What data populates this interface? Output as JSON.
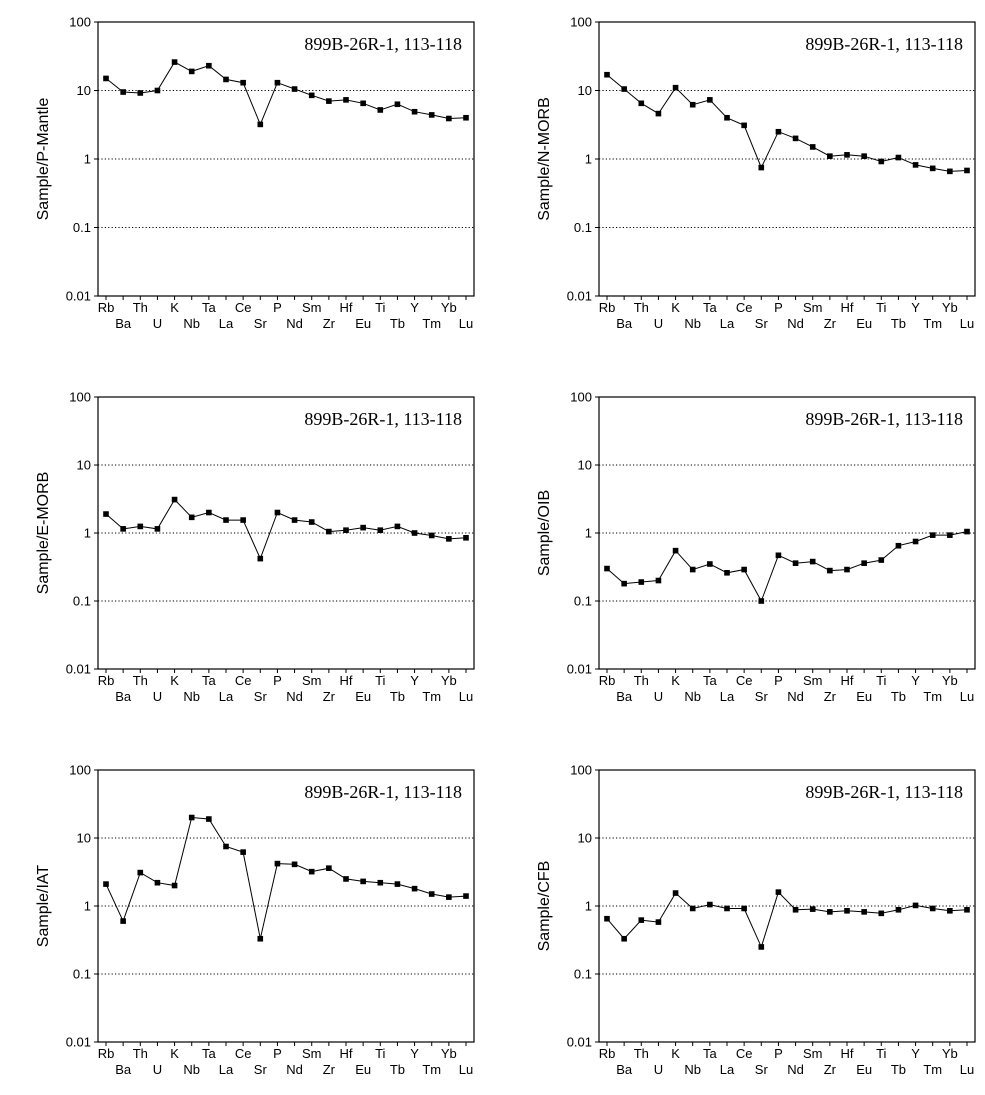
{
  "chart_data": [
    {
      "type": "line",
      "title": "899B-26R-1, 113-118",
      "xlabel": "",
      "ylabel": "Sample/P-Mantle",
      "yscale": "log",
      "ylim": [
        0.01,
        100
      ],
      "yticks": [
        "100",
        "10",
        "1",
        "0.1",
        "0.01"
      ],
      "grid": "dotted horizontal at decades",
      "categories": [
        "Rb",
        "Ba",
        "Th",
        "U",
        "K",
        "Nb",
        "Ta",
        "La",
        "Ce",
        "Sr",
        "P",
        "Nd",
        "Sm",
        "Zr",
        "Hf",
        "Eu",
        "Ti",
        "Tb",
        "Y",
        "Tm",
        "Yb",
        "Lu"
      ],
      "values": [
        15,
        9.5,
        9.2,
        10,
        26,
        19,
        23,
        14.5,
        13,
        3.2,
        13,
        10.5,
        8.5,
        7,
        7.3,
        6.5,
        5.2,
        6.3,
        4.9,
        4.4,
        3.9,
        4.0
      ]
    },
    {
      "type": "line",
      "title": "899B-26R-1, 113-118",
      "xlabel": "",
      "ylabel": "Sample/N-MORB",
      "yscale": "log",
      "ylim": [
        0.01,
        100
      ],
      "yticks": [
        "100",
        "10",
        "1",
        "0.1",
        "0.01"
      ],
      "grid": "dotted horizontal at decades",
      "categories": [
        "Rb",
        "Ba",
        "Th",
        "U",
        "K",
        "Nb",
        "Ta",
        "La",
        "Ce",
        "Sr",
        "P",
        "Nd",
        "Sm",
        "Zr",
        "Hf",
        "Eu",
        "Ti",
        "Tb",
        "Y",
        "Tm",
        "Yb",
        "Lu"
      ],
      "values": [
        17,
        10.5,
        6.5,
        4.6,
        11,
        6.2,
        7.3,
        4.0,
        3.1,
        0.75,
        2.5,
        2.0,
        1.5,
        1.1,
        1.15,
        1.1,
        0.92,
        1.05,
        0.82,
        0.73,
        0.66,
        0.68
      ]
    },
    {
      "type": "line",
      "title": "899B-26R-1, 113-118",
      "xlabel": "",
      "ylabel": "Sample/E-MORB",
      "yscale": "log",
      "ylim": [
        0.01,
        100
      ],
      "yticks": [
        "100",
        "10",
        "1",
        "0.1",
        "0.01"
      ],
      "grid": "dotted horizontal at decades",
      "categories": [
        "Rb",
        "Ba",
        "Th",
        "U",
        "K",
        "Nb",
        "Ta",
        "La",
        "Ce",
        "Sr",
        "P",
        "Nd",
        "Sm",
        "Zr",
        "Hf",
        "Eu",
        "Ti",
        "Tb",
        "Y",
        "Tm",
        "Yb",
        "Lu"
      ],
      "values": [
        1.9,
        1.15,
        1.25,
        1.15,
        3.1,
        1.7,
        2.0,
        1.55,
        1.55,
        0.42,
        2.0,
        1.55,
        1.45,
        1.05,
        1.1,
        1.2,
        1.1,
        1.25,
        1.0,
        0.92,
        0.82,
        0.85
      ]
    },
    {
      "type": "line",
      "title": "899B-26R-1, 113-118",
      "xlabel": "",
      "ylabel": "Sample/OIB",
      "yscale": "log",
      "ylim": [
        0.01,
        100
      ],
      "yticks": [
        "100",
        "10",
        "1",
        "0.1",
        "0.01"
      ],
      "grid": "dotted horizontal at decades",
      "categories": [
        "Rb",
        "Ba",
        "Th",
        "U",
        "K",
        "Nb",
        "Ta",
        "La",
        "Ce",
        "Sr",
        "P",
        "Nd",
        "Sm",
        "Zr",
        "Hf",
        "Eu",
        "Ti",
        "Tb",
        "Y",
        "Tm",
        "Yb",
        "Lu"
      ],
      "values": [
        0.3,
        0.18,
        0.19,
        0.2,
        0.55,
        0.29,
        0.35,
        0.26,
        0.29,
        0.1,
        0.47,
        0.36,
        0.38,
        0.28,
        0.29,
        0.36,
        0.4,
        0.65,
        0.75,
        0.93,
        0.93,
        1.05
      ]
    },
    {
      "type": "line",
      "title": "899B-26R-1, 113-118",
      "xlabel": "",
      "ylabel": "Sample/IAT",
      "yscale": "log",
      "ylim": [
        0.01,
        100
      ],
      "yticks": [
        "100",
        "10",
        "1",
        "0.1",
        "0.01"
      ],
      "grid": "dotted horizontal at decades",
      "categories": [
        "Rb",
        "Ba",
        "Th",
        "U",
        "K",
        "Nb",
        "Ta",
        "La",
        "Ce",
        "Sr",
        "P",
        "Nd",
        "Sm",
        "Zr",
        "Hf",
        "Eu",
        "Ti",
        "Tb",
        "Y",
        "Tm",
        "Yb",
        "Lu"
      ],
      "values": [
        2.1,
        0.6,
        3.1,
        2.2,
        2.0,
        20,
        19,
        7.5,
        6.2,
        0.33,
        4.2,
        4.1,
        3.2,
        3.6,
        2.5,
        2.3,
        2.2,
        2.1,
        1.8,
        1.5,
        1.35,
        1.4
      ]
    },
    {
      "type": "line",
      "title": "899B-26R-1, 113-118",
      "xlabel": "",
      "ylabel": "Sample/CFB",
      "yscale": "log",
      "ylim": [
        0.01,
        100
      ],
      "yticks": [
        "100",
        "10",
        "1",
        "0.1",
        "0.01"
      ],
      "grid": "dotted horizontal at decades",
      "categories": [
        "Rb",
        "Ba",
        "Th",
        "U",
        "K",
        "Nb",
        "Ta",
        "La",
        "Ce",
        "Sr",
        "P",
        "Nd",
        "Sm",
        "Zr",
        "Hf",
        "Eu",
        "Ti",
        "Tb",
        "Y",
        "Tm",
        "Yb",
        "Lu"
      ],
      "values": [
        0.65,
        0.33,
        0.62,
        0.58,
        1.55,
        0.92,
        1.05,
        0.92,
        0.92,
        0.25,
        1.6,
        0.88,
        0.9,
        0.82,
        0.85,
        0.82,
        0.78,
        0.88,
        1.02,
        0.92,
        0.85,
        0.88
      ]
    }
  ]
}
